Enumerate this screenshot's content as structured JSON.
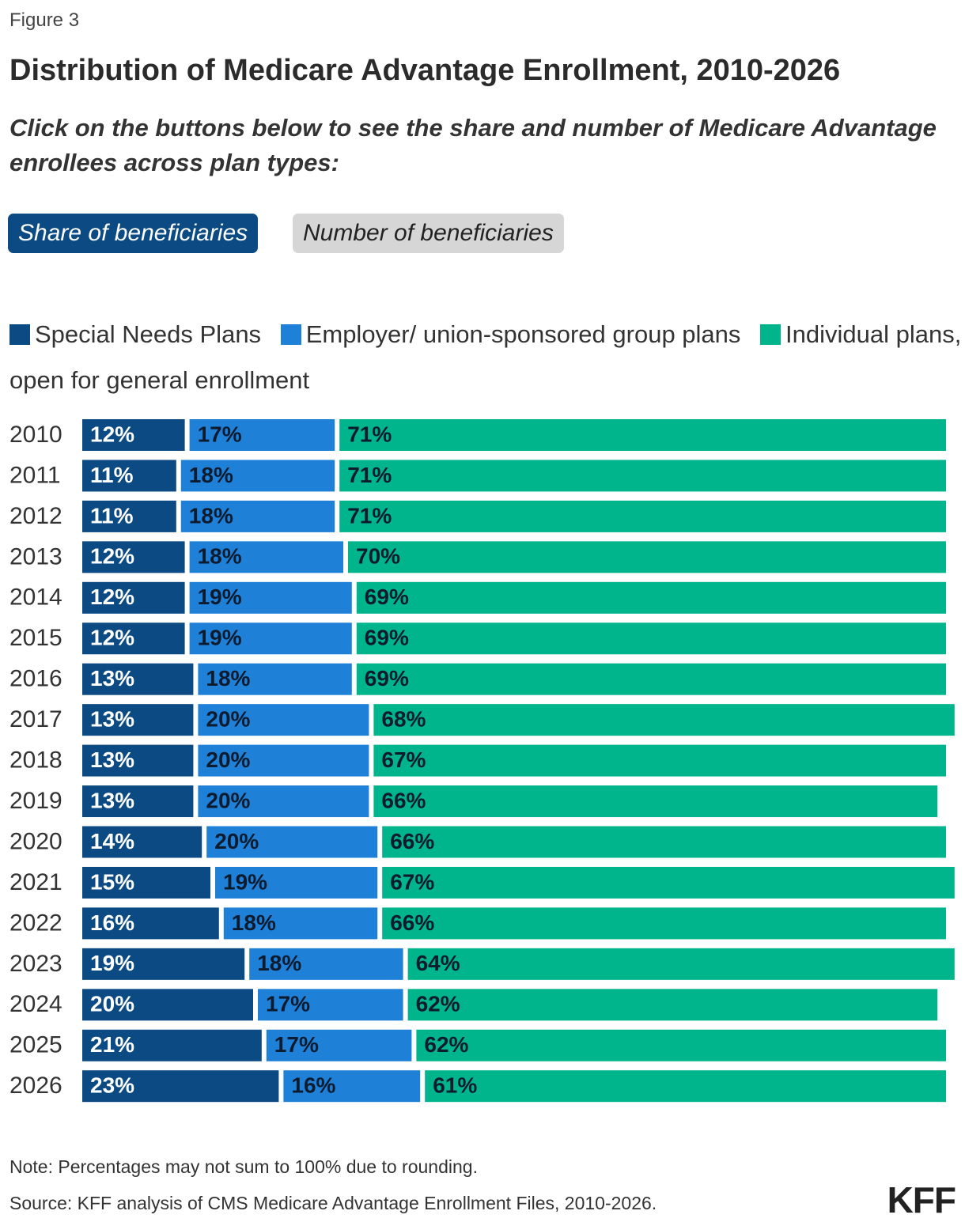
{
  "figure_label": "Figure 3",
  "buttons": [
    "Share of beneficiaries",
    "Number of beneficiaries"
  ],
  "note": "Note: Percentages may not sum to 100% due to rounding.",
  "source": "Source: KFF analysis of CMS Medicare Advantage Enrollment Files, 2010-2026.",
  "logo": "KFF",
  "chart_data": {
    "type": "stacked-bar",
    "title": "Distribution of Medicare Advantage Enrollment, 2010-2026",
    "subtitle": "Click on the buttons below to see the share and number of Medicare Advantage enrollees across plan types:",
    "categories": [
      "2010",
      "2011",
      "2012",
      "2013",
      "2014",
      "2015",
      "2016",
      "2017",
      "2018",
      "2019",
      "2020",
      "2021",
      "2022",
      "2023",
      "2024",
      "2025",
      "2026"
    ],
    "series": [
      {
        "name": "Special Needs Plans",
        "color": "#0b4a83",
        "values": [
          12,
          11,
          11,
          12,
          12,
          12,
          13,
          13,
          13,
          13,
          14,
          15,
          16,
          19,
          20,
          21,
          23
        ],
        "value_labels": [
          "12%",
          "11%",
          "11%",
          "12%",
          "12%",
          "12%",
          "13%",
          "13%",
          "13%",
          "13%",
          "14%",
          "15%",
          "16%",
          "19%",
          "20%",
          "21%",
          "23%"
        ]
      },
      {
        "name": "Employer/ union-sponsored group plans",
        "color": "#1f80d8",
        "values": [
          17,
          18,
          18,
          18,
          19,
          19,
          18,
          20,
          20,
          20,
          20,
          19,
          18,
          18,
          17,
          17,
          16
        ],
        "value_labels": [
          "17%",
          "18%",
          "18%",
          "18%",
          "19%",
          "19%",
          "18%",
          "20%",
          "20%",
          "20%",
          "20%",
          "19%",
          "18%",
          "18%",
          "17%",
          "17%",
          "16%"
        ]
      },
      {
        "name": "Individual plans, open for general enrollment",
        "color": "#00b48b",
        "values": [
          71,
          71,
          71,
          70,
          69,
          69,
          69,
          68,
          67,
          66,
          66,
          67,
          66,
          64,
          62,
          62,
          61
        ],
        "value_labels": [
          "71%",
          "71%",
          "71%",
          "70%",
          "69%",
          "69%",
          "69%",
          "68%",
          "67%",
          "66%",
          "66%",
          "67%",
          "66%",
          "64%",
          "62%",
          "62%",
          "61%"
        ]
      }
    ]
  }
}
